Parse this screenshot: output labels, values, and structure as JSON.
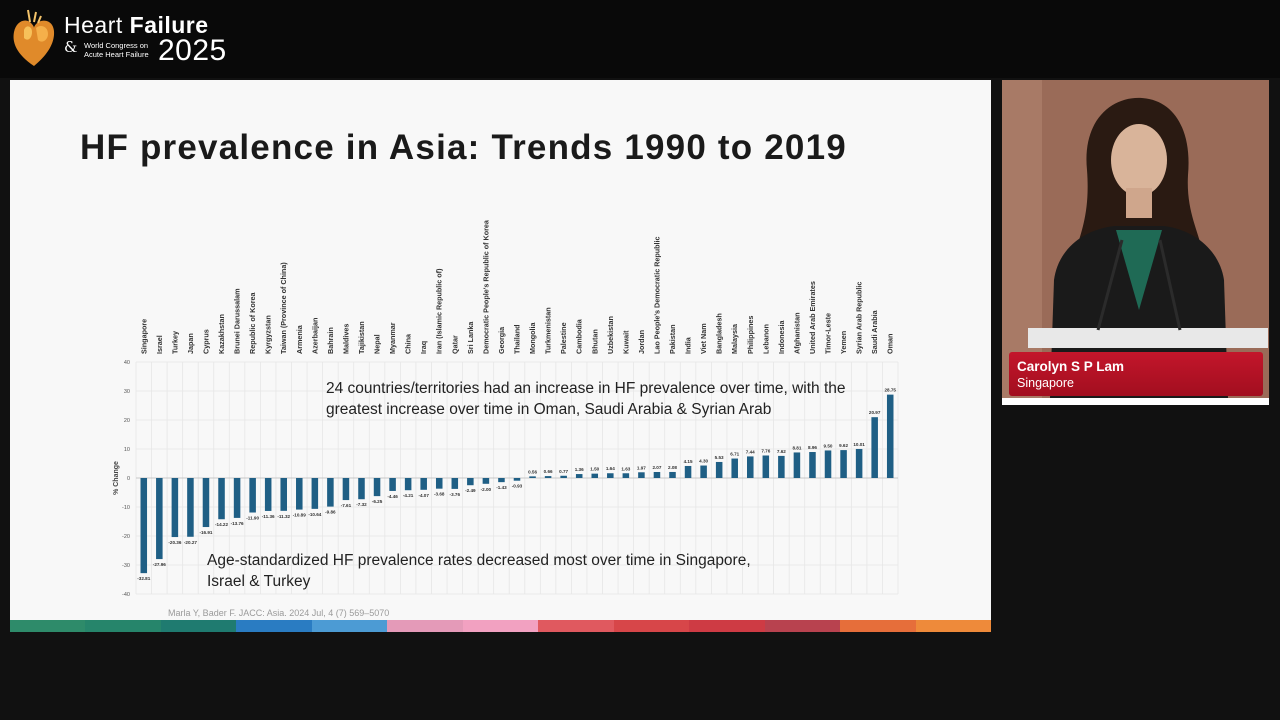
{
  "header": {
    "brand_line1_a": "Heart ",
    "brand_line1_b": "Failure",
    "brand_amp": "&",
    "brand_sub1": "World Congress on",
    "brand_sub2": "Acute Heart Failure",
    "brand_year": "2025",
    "logo_icon": "heart-logo-icon"
  },
  "slide": {
    "title": "HF prevalence in Asia: Trends 1990 to 2019",
    "callout_increase": "24 countries/territories had an increase in HF prevalence over time, with the greatest increase over time in Oman, Saudi Arabia & Syrian Arab",
    "callout_decrease": "Age-standardized HF prevalence rates decreased most over time in Singapore, Israel & Turkey",
    "citation": "Marla Y, Bader F. JACC: Asia. 2024 Jul, 4 (7) 569–5070",
    "colors": {
      "bar": "#1f5f85",
      "stripe": [
        "#2e8b6a",
        "#26856b",
        "#1f7b70",
        "#2a7cc2",
        "#4c9bd4",
        "#e49ab8",
        "#f2a1c1",
        "#e0595f",
        "#d74649",
        "#ce3b44",
        "#b8424f",
        "#e66e3a",
        "#ee8a3a"
      ]
    }
  },
  "speaker": {
    "name": "Carolyn S P Lam",
    "location": "Singapore"
  },
  "chart_data": {
    "type": "bar",
    "ylabel": "% Change",
    "ylim": [
      -40,
      40
    ],
    "yticks": [
      -40,
      -30,
      -20,
      -10,
      0,
      10,
      20,
      30,
      40
    ],
    "categories": [
      "Singapore",
      "Israel",
      "Turkey",
      "Japan",
      "Cyprus",
      "Kazakhstan",
      "Brunei Darussalam",
      "Republic of Korea",
      "Kyrgyzstan",
      "Taiwan (Province of China)",
      "Armenia",
      "Azerbaijan",
      "Bahrain",
      "Maldives",
      "Tajikistan",
      "Nepal",
      "Myanmar",
      "China",
      "Iraq",
      "Iran (Islamic Republic of)",
      "Qatar",
      "Sri Lanka",
      "Democratic People's Republic of Korea",
      "Georgia",
      "Thailand",
      "Mongolia",
      "Turkmenistan",
      "Palestine",
      "Cambodia",
      "Bhutan",
      "Uzbekistan",
      "Kuwait",
      "Jordan",
      "Lao People's Democratic Republic",
      "Pakistan",
      "India",
      "Viet Nam",
      "Bangladesh",
      "Malaysia",
      "Philippines",
      "Lebanon",
      "Indonesia",
      "Afghanistan",
      "United Arab Emirates",
      "Timor-Leste",
      "Yemen",
      "Syrian Arab Republic",
      "Saudi Arabia",
      "Oman"
    ],
    "values": [
      -32.81,
      -27.96,
      -20.36,
      -20.27,
      -16.91,
      -14.22,
      -13.76,
      -11.9,
      -11.36,
      -11.32,
      -10.89,
      -10.64,
      -9.86,
      -7.61,
      -7.32,
      -6.25,
      -4.46,
      -4.21,
      -4.07,
      -3.68,
      -3.76,
      -2.49,
      -2.0,
      -1.43,
      -0.93,
      0.56,
      0.66,
      0.77,
      1.36,
      1.5,
      1.64,
      1.63,
      1.97,
      2.07,
      2.08,
      4.15,
      4.3,
      5.53,
      6.71,
      7.44,
      7.76,
      7.62,
      8.81,
      8.96,
      9.5,
      9.62,
      10.01,
      20.97,
      28.75
    ],
    "value_labels": [
      "-32.81",
      "-27.96",
      "-20.36",
      "-20.27",
      "-16.91",
      "-14.22",
      "-13.76",
      "-11.90",
      "-11.36",
      "-11.32",
      "-10.89",
      "-10.64",
      "-9.86",
      "-7.61",
      "-7.32",
      "-6.25",
      "-4.46",
      "-4.21",
      "-4.07",
      "-3.68",
      "-3.76",
      "-2.49",
      "-2.00",
      "-1.43",
      "-0.93",
      "0.56",
      "0.66",
      "0.77",
      "1.36",
      "1.50",
      "1.64",
      "1.63",
      "1.97",
      "2.07",
      "2.08",
      "4.15",
      "4.30",
      "5.53",
      "6.71",
      "7.44",
      "7.76",
      "7.62",
      "8.81",
      "8.96",
      "9.50",
      "9.62",
      "10.01",
      "20.97",
      "28.75"
    ],
    "grid": true,
    "legend": "none"
  }
}
